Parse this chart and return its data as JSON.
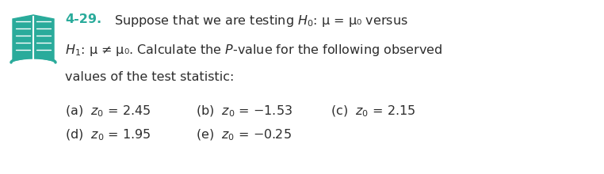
{
  "bg_color": "#ffffff",
  "text_color": "#2d2d2d",
  "icon_teal": "#2aab9b",
  "problem_number": "4-29.",
  "line1_rest": "  Suppose that we are testing $\\mathit{H}_0$: μ = μ₀ versus",
  "line2": "$\\mathit{H}_1$: μ ≠ μ₀. Calculate the $\\mathit{P}$-value for the following observed",
  "line3": "values of the test statistic:",
  "row1_a": "(a)  $z_0$ = 2.45",
  "row1_b": "(b)  $z_0$ = −1.53",
  "row1_c": "(c)  $z_0$ = 2.15",
  "row2_d": "(d)  $z_0$ = 1.95",
  "row2_e": "(e)  $z_0$ = −0.25",
  "fontsize": 11.5,
  "fig_width": 7.62,
  "fig_height": 2.2
}
